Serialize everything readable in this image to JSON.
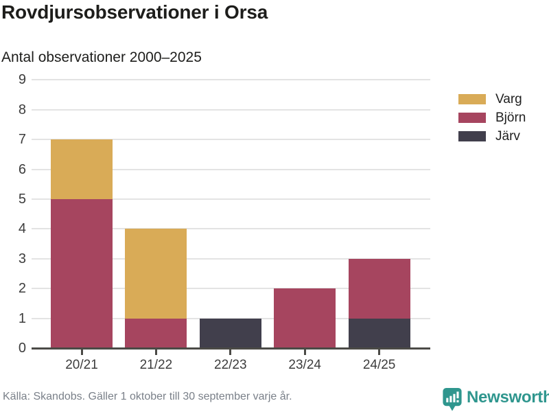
{
  "chart_data": {
    "type": "bar",
    "stacked": true,
    "title": "Rovdjursobservationer i Orsa",
    "subtitle": "Antal observationer 2000–2025",
    "categories": [
      "20/21",
      "21/22",
      "22/23",
      "23/24",
      "24/25"
    ],
    "series": [
      {
        "name": "Varg",
        "color": "#d9ab57",
        "values": [
          2,
          3,
          0,
          0,
          0
        ]
      },
      {
        "name": "Björn",
        "color": "#a6455f",
        "values": [
          5,
          1,
          0,
          2,
          2
        ]
      },
      {
        "name": "Järv",
        "color": "#413f4c",
        "values": [
          0,
          0,
          1,
          0,
          1
        ]
      }
    ],
    "stack_order_bottom_to_top": [
      "Järv",
      "Björn",
      "Varg"
    ],
    "totals": [
      7,
      4,
      1,
      2,
      3
    ],
    "ylim": [
      0,
      9
    ],
    "yticks": [
      0,
      1,
      2,
      3,
      4,
      5,
      6,
      7,
      8,
      9
    ],
    "grid": true,
    "legend_position": "right"
  },
  "colors": {
    "grid": "#e3e3e3",
    "axis": "#4b4a46",
    "tick_label": "#3d3d3d",
    "footer_text": "#7a8089",
    "brand_teal": "#2f968e"
  },
  "footer": {
    "source": "Källa: Skandobs. Gäller 1 oktober till 30 september varje år.",
    "logo_text": "Newsworthy"
  },
  "icons": {
    "logo": "newsworthy-speech-bubble-bar-chart-icon"
  }
}
